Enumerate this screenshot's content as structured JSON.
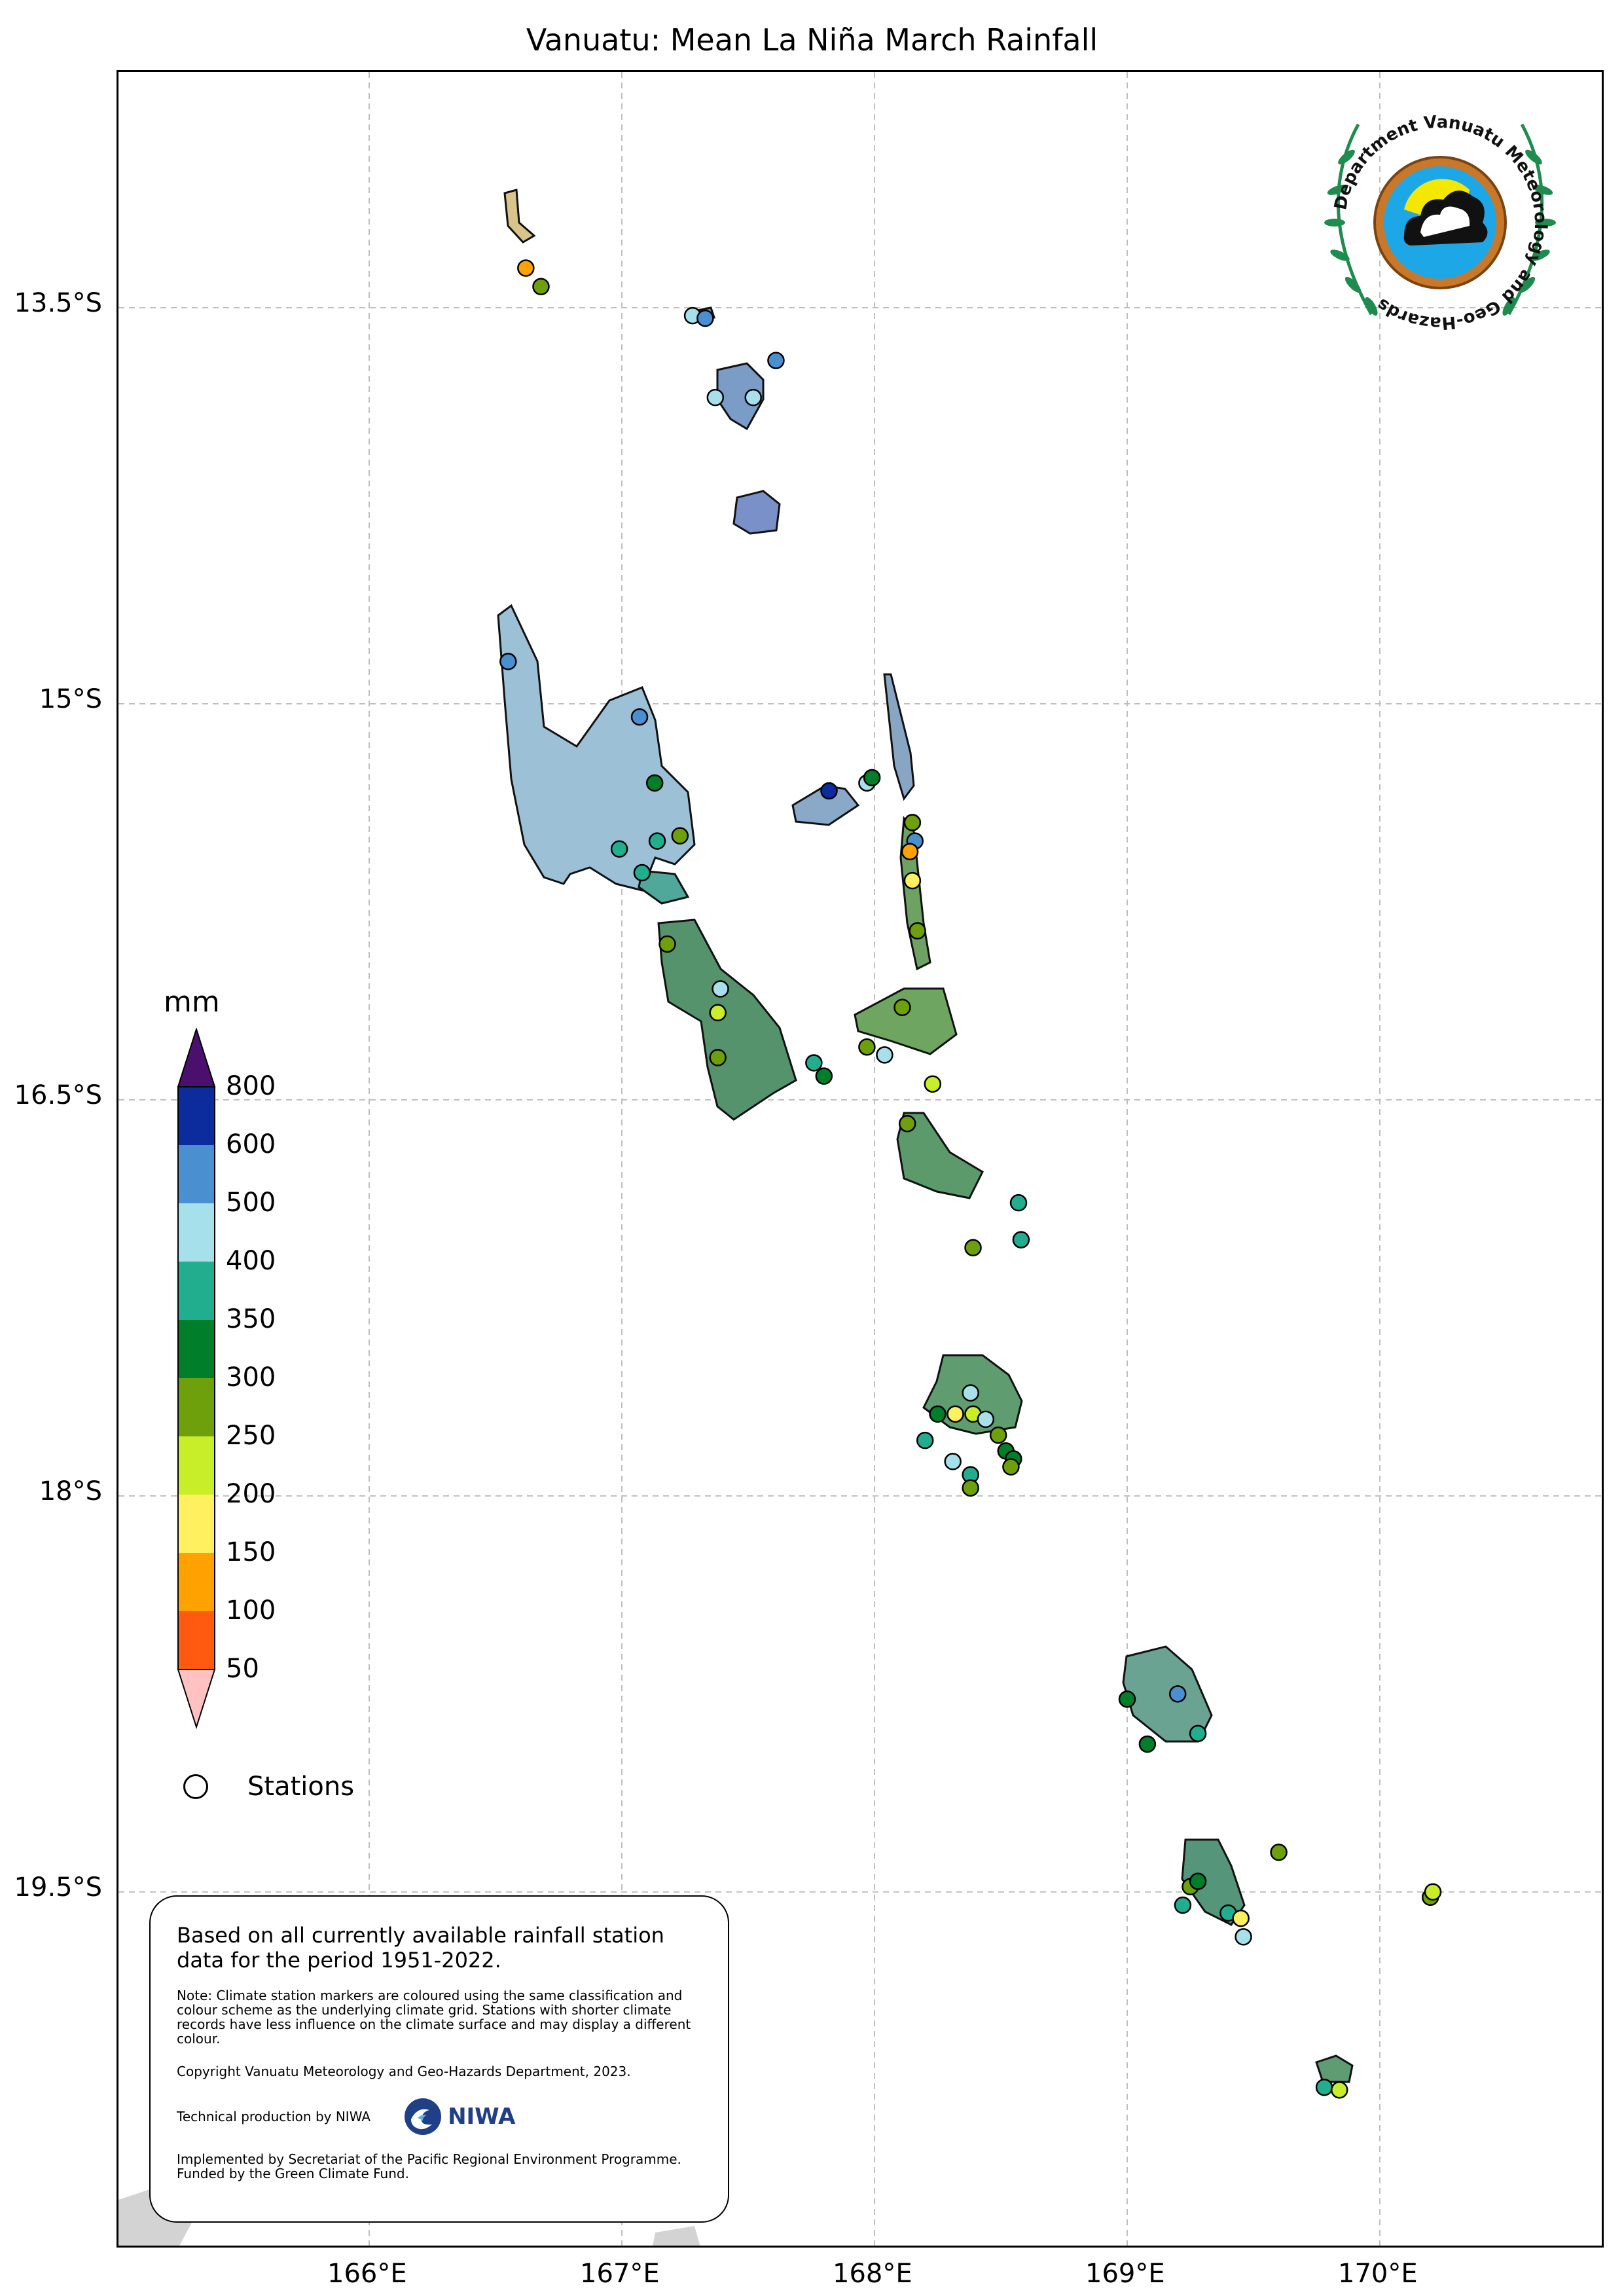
{
  "title": "Vanuatu: Mean La Niña March Rainfall",
  "axes": {
    "x_ticks": [
      "166°E",
      "167°E",
      "168°E",
      "169°E",
      "170°E"
    ],
    "y_ticks": [
      "13.5°S",
      "15°S",
      "16.5°S",
      "18°S",
      "19.5°S"
    ]
  },
  "legend": {
    "unit": "mm",
    "bins": [
      {
        "label": "800",
        "color": "#4b0f6e"
      },
      {
        "label": "600",
        "color": "#0c2b9c"
      },
      {
        "label": "500",
        "color": "#4a90d0"
      },
      {
        "label": "400",
        "color": "#a6e0ea"
      },
      {
        "label": "350",
        "color": "#21ae8f"
      },
      {
        "label": "300",
        "color": "#007e2a"
      },
      {
        "label": "250",
        "color": "#6da00a"
      },
      {
        "label": "200",
        "color": "#c8ee2a"
      },
      {
        "label": "150",
        "color": "#fff060"
      },
      {
        "label": "100",
        "color": "#ffa200"
      },
      {
        "label": "50",
        "color": "#ff5a10"
      },
      {
        "label": "",
        "color": "#ffc1c1"
      }
    ],
    "stations_label": "Stations"
  },
  "info": {
    "main": "Based on all currently available rainfall station data for the period 1951-2022.",
    "note": "Note: Climate station markers are coloured using the same classification and colour scheme as the underlying climate grid. Stations with shorter climate records have less influence on the climate surface and may display a different colour.",
    "copyright": "Copyright Vanuatu Meteorology and Geo-Hazards Department, 2023.",
    "technical": "Technical production by NIWA",
    "niwa": "NIWA",
    "implemented": "Implemented by Secretariat of the Pacific Regional Environment Programme. Funded by the Green Climate Fund."
  },
  "logo": {
    "text": "Department Vanuatu Meteorology and Geo-Hazards"
  },
  "stations": [
    {
      "lon": 166.62,
      "lat": -13.35,
      "color": "#ffa200"
    },
    {
      "lon": 166.68,
      "lat": -13.42,
      "color": "#6da00a"
    },
    {
      "lon": 167.28,
      "lat": -13.53,
      "color": "#a6e0ea"
    },
    {
      "lon": 167.33,
      "lat": -13.54,
      "color": "#4a90d0"
    },
    {
      "lon": 167.61,
      "lat": -13.7,
      "color": "#4a90d0"
    },
    {
      "lon": 167.37,
      "lat": -13.84,
      "color": "#a6e0ea"
    },
    {
      "lon": 167.52,
      "lat": -13.84,
      "color": "#a6e0ea"
    },
    {
      "lon": 166.55,
      "lat": -14.84,
      "color": "#4a90d0"
    },
    {
      "lon": 167.07,
      "lat": -15.05,
      "color": "#4a90d0"
    },
    {
      "lon": 167.13,
      "lat": -15.3,
      "color": "#007e2a"
    },
    {
      "lon": 167.23,
      "lat": -15.5,
      "color": "#6da00a"
    },
    {
      "lon": 167.14,
      "lat": -15.52,
      "color": "#21ae8f"
    },
    {
      "lon": 166.99,
      "lat": -15.55,
      "color": "#21ae8f"
    },
    {
      "lon": 167.08,
      "lat": -15.64,
      "color": "#21ae8f"
    },
    {
      "lon": 167.82,
      "lat": -15.33,
      "color": "#0c2b9c"
    },
    {
      "lon": 167.97,
      "lat": -15.3,
      "color": "#a6e0ea"
    },
    {
      "lon": 167.99,
      "lat": -15.28,
      "color": "#007e2a"
    },
    {
      "lon": 168.15,
      "lat": -15.45,
      "color": "#6da00a"
    },
    {
      "lon": 168.16,
      "lat": -15.52,
      "color": "#4a90d0"
    },
    {
      "lon": 168.14,
      "lat": -15.56,
      "color": "#ffa200"
    },
    {
      "lon": 168.15,
      "lat": -15.67,
      "color": "#fff060"
    },
    {
      "lon": 168.17,
      "lat": -15.86,
      "color": "#6da00a"
    },
    {
      "lon": 167.18,
      "lat": -15.91,
      "color": "#6da00a"
    },
    {
      "lon": 167.39,
      "lat": -16.08,
      "color": "#a6e0ea"
    },
    {
      "lon": 167.38,
      "lat": -16.17,
      "color": "#c8ee2a"
    },
    {
      "lon": 167.38,
      "lat": -16.34,
      "color": "#6da00a"
    },
    {
      "lon": 167.76,
      "lat": -16.36,
      "color": "#21ae8f"
    },
    {
      "lon": 167.8,
      "lat": -16.41,
      "color": "#007e2a"
    },
    {
      "lon": 168.11,
      "lat": -16.15,
      "color": "#6da00a"
    },
    {
      "lon": 167.97,
      "lat": -16.3,
      "color": "#6da00a"
    },
    {
      "lon": 168.04,
      "lat": -16.33,
      "color": "#a6e0ea"
    },
    {
      "lon": 168.23,
      "lat": -16.44,
      "color": "#c8ee2a"
    },
    {
      "lon": 168.13,
      "lat": -16.59,
      "color": "#6da00a"
    },
    {
      "lon": 168.57,
      "lat": -16.89,
      "color": "#21ae8f"
    },
    {
      "lon": 168.58,
      "lat": -17.03,
      "color": "#21ae8f"
    },
    {
      "lon": 168.39,
      "lat": -17.06,
      "color": "#6da00a"
    },
    {
      "lon": 168.38,
      "lat": -17.61,
      "color": "#a6e0ea"
    },
    {
      "lon": 168.25,
      "lat": -17.69,
      "color": "#007e2a"
    },
    {
      "lon": 168.32,
      "lat": -17.69,
      "color": "#fff060"
    },
    {
      "lon": 168.39,
      "lat": -17.69,
      "color": "#c8ee2a"
    },
    {
      "lon": 168.44,
      "lat": -17.71,
      "color": "#a6e0ea"
    },
    {
      "lon": 168.49,
      "lat": -17.77,
      "color": "#6da00a"
    },
    {
      "lon": 168.2,
      "lat": -17.79,
      "color": "#21ae8f"
    },
    {
      "lon": 168.52,
      "lat": -17.83,
      "color": "#007e2a"
    },
    {
      "lon": 168.55,
      "lat": -17.86,
      "color": "#007e2a"
    },
    {
      "lon": 168.54,
      "lat": -17.89,
      "color": "#6da00a"
    },
    {
      "lon": 168.31,
      "lat": -17.87,
      "color": "#a6e0ea"
    },
    {
      "lon": 168.38,
      "lat": -17.92,
      "color": "#21ae8f"
    },
    {
      "lon": 168.38,
      "lat": -17.97,
      "color": "#6da00a"
    },
    {
      "lon": 169.0,
      "lat": -18.77,
      "color": "#007e2a"
    },
    {
      "lon": 169.2,
      "lat": -18.75,
      "color": "#4a90d0"
    },
    {
      "lon": 169.28,
      "lat": -18.9,
      "color": "#21ae8f"
    },
    {
      "lon": 169.08,
      "lat": -18.94,
      "color": "#007e2a"
    },
    {
      "lon": 169.6,
      "lat": -19.35,
      "color": "#6da00a"
    },
    {
      "lon": 169.25,
      "lat": -19.48,
      "color": "#6da00a"
    },
    {
      "lon": 169.28,
      "lat": -19.46,
      "color": "#007e2a"
    },
    {
      "lon": 169.22,
      "lat": -19.55,
      "color": "#21ae8f"
    },
    {
      "lon": 169.4,
      "lat": -19.58,
      "color": "#21ae8f"
    },
    {
      "lon": 169.45,
      "lat": -19.6,
      "color": "#fff060"
    },
    {
      "lon": 169.46,
      "lat": -19.67,
      "color": "#a6e0ea"
    },
    {
      "lon": 170.2,
      "lat": -19.52,
      "color": "#6da00a"
    },
    {
      "lon": 170.21,
      "lat": -19.5,
      "color": "#c8ee2a"
    },
    {
      "lon": 169.78,
      "lat": -20.24,
      "color": "#21ae8f"
    },
    {
      "lon": 169.84,
      "lat": -20.25,
      "color": "#c8ee2a"
    }
  ]
}
